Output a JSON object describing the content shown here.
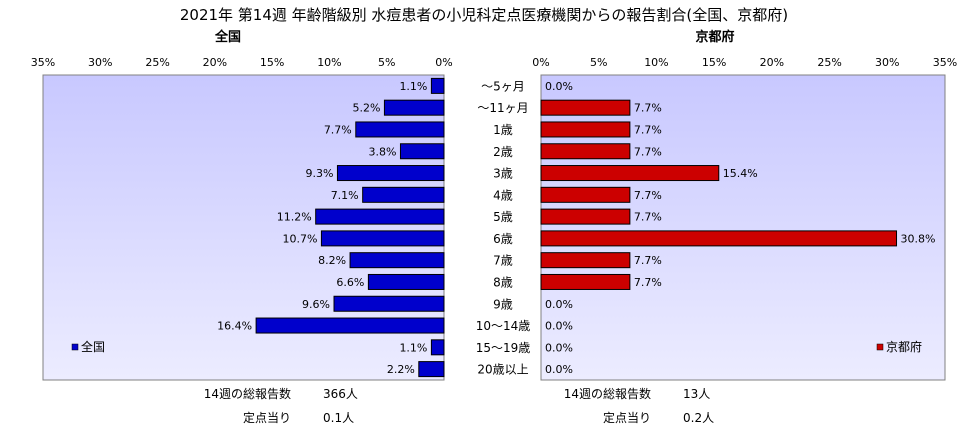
{
  "title": "2021年 第14週 年齢階級別 水痘患者の小児科定点医療機関からの報告割合(全国、京都府)",
  "age_groups": [
    "～5ヶ月",
    "～11ヶ月",
    "1歳",
    "2歳",
    "3歳",
    "4歳",
    "5歳",
    "6歳",
    "7歳",
    "8歳",
    "9歳",
    "10～14歳",
    "15～19歳",
    "20歳以上"
  ],
  "colors": {
    "national": "#0000cc",
    "kyoto": "#cc0000",
    "plot_bg": "#ccccff"
  },
  "chart_data": [
    {
      "type": "bar",
      "orientation": "horizontal",
      "title": "全国",
      "categories": [
        "～5ヶ月",
        "～11ヶ月",
        "1歳",
        "2歳",
        "3歳",
        "4歳",
        "5歳",
        "6歳",
        "7歳",
        "8歳",
        "9歳",
        "10～14歳",
        "15～19歳",
        "20歳以上"
      ],
      "series": [
        {
          "name": "全国",
          "values": [
            1.1,
            5.2,
            7.7,
            3.8,
            9.3,
            7.1,
            11.2,
            10.7,
            8.2,
            6.6,
            9.6,
            16.4,
            1.1,
            2.2
          ]
        }
      ],
      "value_labels": [
        "1.1%",
        "5.2%",
        "7.7%",
        "3.8%",
        "9.3%",
        "7.1%",
        "11.2%",
        "10.7%",
        "8.2%",
        "6.6%",
        "9.6%",
        "16.4%",
        "1.1%",
        "2.2%"
      ],
      "xlim": [
        0,
        35
      ],
      "x_reversed": true,
      "ticks": [
        "35%",
        "30%",
        "25%",
        "20%",
        "15%",
        "10%",
        "5%",
        "0%"
      ],
      "legend_position": "bottom-left",
      "footer": {
        "total_label": "14週の総報告数",
        "total_value": "366人",
        "per_label": "定点当り",
        "per_value": "0.1人"
      }
    },
    {
      "type": "bar",
      "orientation": "horizontal",
      "title": "京都府",
      "categories": [
        "～5ヶ月",
        "～11ヶ月",
        "1歳",
        "2歳",
        "3歳",
        "4歳",
        "5歳",
        "6歳",
        "7歳",
        "8歳",
        "9歳",
        "10～14歳",
        "15～19歳",
        "20歳以上"
      ],
      "series": [
        {
          "name": "京都府",
          "values": [
            0.0,
            7.7,
            7.7,
            7.7,
            15.4,
            7.7,
            7.7,
            30.8,
            7.7,
            7.7,
            0.0,
            0.0,
            0.0,
            0.0
          ]
        }
      ],
      "value_labels": [
        "0.0%",
        "7.7%",
        "7.7%",
        "7.7%",
        "15.4%",
        "7.7%",
        "7.7%",
        "30.8%",
        "7.7%",
        "7.7%",
        "0.0%",
        "0.0%",
        "0.0%",
        "0.0%"
      ],
      "xlim": [
        0,
        35
      ],
      "x_reversed": false,
      "ticks": [
        "0%",
        "5%",
        "10%",
        "15%",
        "20%",
        "25%",
        "30%",
        "35%"
      ],
      "legend_position": "bottom-right",
      "footer": {
        "total_label": "14週の総報告数",
        "total_value": "13人",
        "per_label": "定点当り",
        "per_value": "0.2人"
      }
    }
  ]
}
